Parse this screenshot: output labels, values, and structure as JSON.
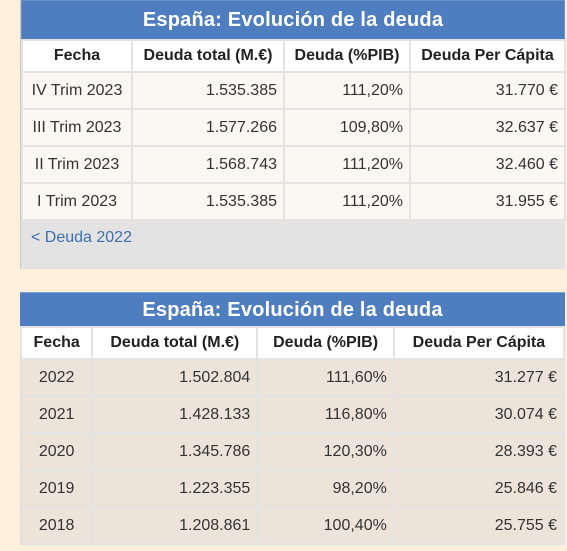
{
  "panels": [
    {
      "title": "España: Evolución de la deuda",
      "headers": [
        "Fecha",
        "Deuda total (M.€)",
        "Deuda (%PIB)",
        "Deuda Per Cápita"
      ],
      "rows": [
        [
          "IV Trim 2023",
          "1.535.385",
          "111,20%",
          "31.770 €"
        ],
        [
          "III Trim 2023",
          "1.577.266",
          "109,80%",
          "32.637 €"
        ],
        [
          "II Trim 2023",
          "1.568.743",
          "111,20%",
          "32.460 €"
        ],
        [
          "I Trim 2023",
          "1.535.385",
          "111,20%",
          "31.955 €"
        ]
      ],
      "footer_link": "< Deuda 2022"
    },
    {
      "title": "España: Evolución de la deuda",
      "headers": [
        "Fecha",
        "Deuda total (M.€)",
        "Deuda (%PIB)",
        "Deuda Per Cápita"
      ],
      "rows": [
        [
          "2022",
          "1.502.804",
          "111,60%",
          "31.277 €"
        ],
        [
          "2021",
          "1.428.133",
          "116,80%",
          "30.074 €"
        ],
        [
          "2020",
          "1.345.786",
          "120,30%",
          "28.393 €"
        ],
        [
          "2019",
          "1.223.355",
          "98,20%",
          "25.846 €"
        ],
        [
          "2018",
          "1.208.861",
          "100,40%",
          "25.755 €"
        ]
      ]
    }
  ],
  "colors": {
    "title_bar": "#4f7ec0",
    "page_bg": "#fcefdc",
    "link": "#3e6fb3"
  }
}
